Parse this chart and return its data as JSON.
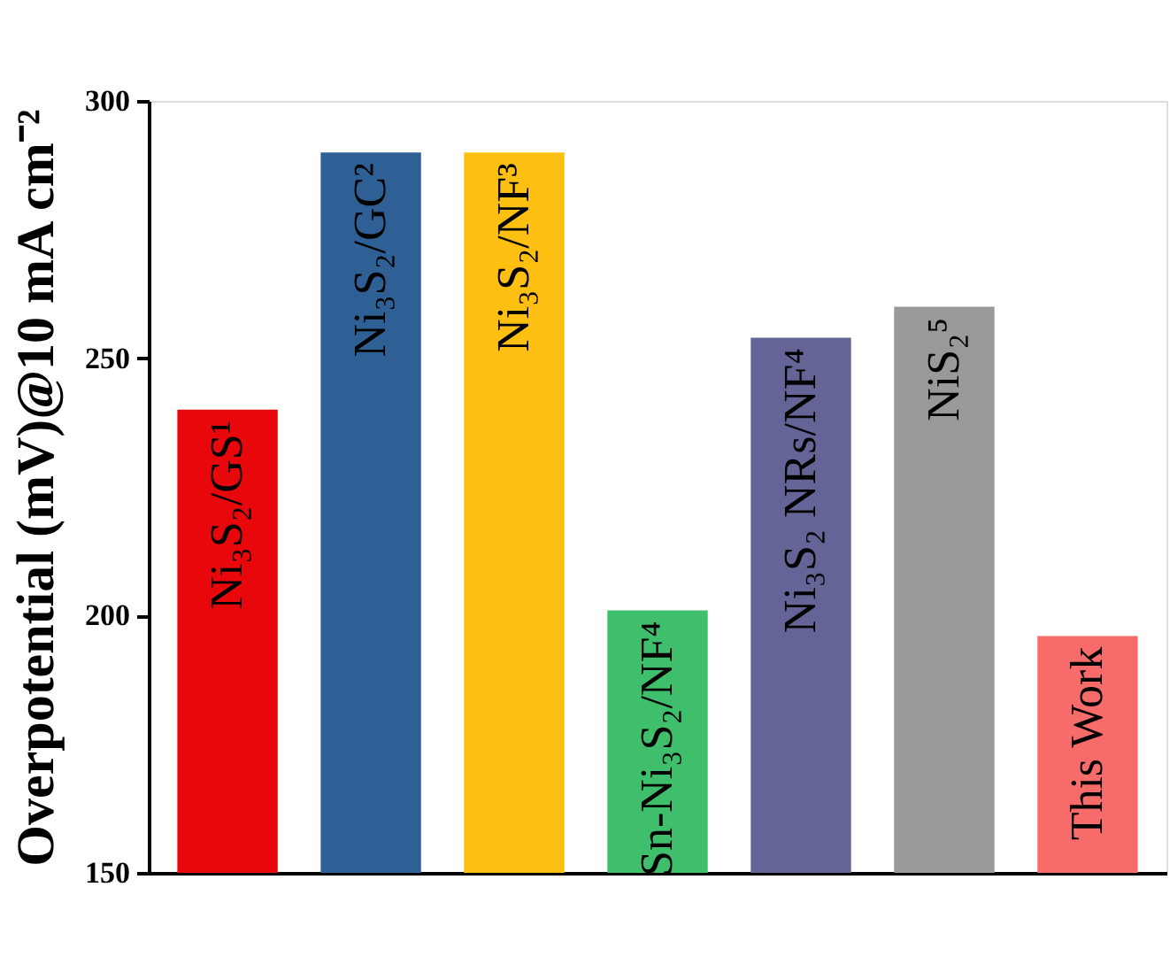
{
  "chart_data": {
    "type": "bar",
    "ylabel": "Overpotential (mV)@10 mA cm⁻²",
    "categories": [
      "Ni₃S₂/GS¹",
      "Ni₃S₂/GC²",
      "Ni₃S₂/NF³",
      "Sn-Ni₃S₂/NF⁴",
      "Ni₃S₂ NRs/NF⁴",
      "NiS₂⁵",
      "This Work"
    ],
    "values": [
      240,
      290,
      290,
      201,
      254,
      260,
      196
    ],
    "colors": [
      "#e8080b",
      "#2e6095",
      "#fdbf12",
      "#3fbf6c",
      "#646496",
      "#999999",
      "#f86b6b"
    ],
    "ylim": [
      150,
      300
    ],
    "yticks": [
      150,
      200,
      250,
      300
    ],
    "grid": false,
    "tick_labels": "y"
  }
}
